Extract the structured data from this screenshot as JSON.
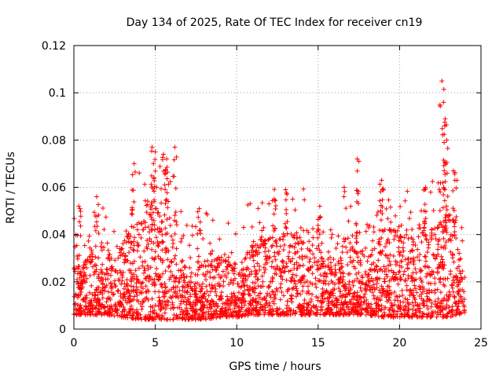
{
  "chart_data": {
    "type": "scatter",
    "title": "Day 134 of 2025, Rate Of TEC Index for receiver cn19",
    "xlabel": "GPS time / hours",
    "ylabel": "ROTI / TECUs",
    "xlim": [
      0,
      25
    ],
    "ylim": [
      0,
      0.12
    ],
    "xticks": [
      0,
      5,
      10,
      15,
      20,
      25
    ],
    "xtick_labels": [
      "0",
      "5",
      "10",
      "15",
      "20",
      "25"
    ],
    "yticks": [
      0,
      0.02,
      0.04,
      0.06,
      0.08,
      0.1,
      0.12
    ],
    "ytick_labels": [
      "0",
      "0.02",
      "0.04",
      "0.06",
      "0.08",
      "0.1",
      "0.12"
    ],
    "grid": true,
    "marker": "+",
    "color": "#ff0000",
    "series": [
      {
        "name": "ROTI",
        "description": "dense band of samples mostly between 0.005 and 0.03 TECU/s over 0-24 h, with activity peaks",
        "envelope": [
          {
            "x": 0.0,
            "lo": 0.006,
            "hi": 0.025
          },
          {
            "x": 1.0,
            "lo": 0.006,
            "hi": 0.032
          },
          {
            "x": 2.0,
            "lo": 0.006,
            "hi": 0.03
          },
          {
            "x": 3.0,
            "lo": 0.005,
            "hi": 0.035
          },
          {
            "x": 4.0,
            "lo": 0.004,
            "hi": 0.045
          },
          {
            "x": 5.0,
            "lo": 0.004,
            "hi": 0.05
          },
          {
            "x": 6.0,
            "lo": 0.004,
            "hi": 0.045
          },
          {
            "x": 7.0,
            "lo": 0.004,
            "hi": 0.022
          },
          {
            "x": 8.0,
            "lo": 0.004,
            "hi": 0.028
          },
          {
            "x": 9.0,
            "lo": 0.005,
            "hi": 0.03
          },
          {
            "x": 10.0,
            "lo": 0.005,
            "hi": 0.025
          },
          {
            "x": 11.0,
            "lo": 0.006,
            "hi": 0.035
          },
          {
            "x": 12.0,
            "lo": 0.006,
            "hi": 0.038
          },
          {
            "x": 13.0,
            "lo": 0.006,
            "hi": 0.04
          },
          {
            "x": 14.0,
            "lo": 0.006,
            "hi": 0.038
          },
          {
            "x": 15.0,
            "lo": 0.006,
            "hi": 0.035
          },
          {
            "x": 16.0,
            "lo": 0.006,
            "hi": 0.025
          },
          {
            "x": 17.0,
            "lo": 0.006,
            "hi": 0.035
          },
          {
            "x": 18.0,
            "lo": 0.006,
            "hi": 0.03
          },
          {
            "x": 19.0,
            "lo": 0.005,
            "hi": 0.045
          },
          {
            "x": 20.0,
            "lo": 0.005,
            "hi": 0.04
          },
          {
            "x": 21.0,
            "lo": 0.005,
            "hi": 0.04
          },
          {
            "x": 22.0,
            "lo": 0.005,
            "hi": 0.042
          },
          {
            "x": 23.0,
            "lo": 0.005,
            "hi": 0.045
          },
          {
            "x": 24.0,
            "lo": 0.007,
            "hi": 0.025
          }
        ],
        "spikes": [
          {
            "x": 0.3,
            "y": 0.052
          },
          {
            "x": 1.4,
            "y": 0.056
          },
          {
            "x": 3.7,
            "y": 0.07
          },
          {
            "x": 4.8,
            "y": 0.077
          },
          {
            "x": 5.0,
            "y": 0.075
          },
          {
            "x": 5.5,
            "y": 0.074
          },
          {
            "x": 5.7,
            "y": 0.072
          },
          {
            "x": 6.2,
            "y": 0.077
          },
          {
            "x": 7.7,
            "y": 0.051
          },
          {
            "x": 12.3,
            "y": 0.055
          },
          {
            "x": 13.0,
            "y": 0.059
          },
          {
            "x": 15.1,
            "y": 0.052
          },
          {
            "x": 16.6,
            "y": 0.06
          },
          {
            "x": 17.4,
            "y": 0.072
          },
          {
            "x": 17.5,
            "y": 0.071
          },
          {
            "x": 18.9,
            "y": 0.063
          },
          {
            "x": 21.6,
            "y": 0.06
          },
          {
            "x": 22.6,
            "y": 0.105
          },
          {
            "x": 22.7,
            "y": 0.096
          },
          {
            "x": 22.8,
            "y": 0.089
          },
          {
            "x": 22.9,
            "y": 0.08
          },
          {
            "x": 23.3,
            "y": 0.067
          },
          {
            "x": 23.4,
            "y": 0.063
          }
        ]
      }
    ]
  }
}
